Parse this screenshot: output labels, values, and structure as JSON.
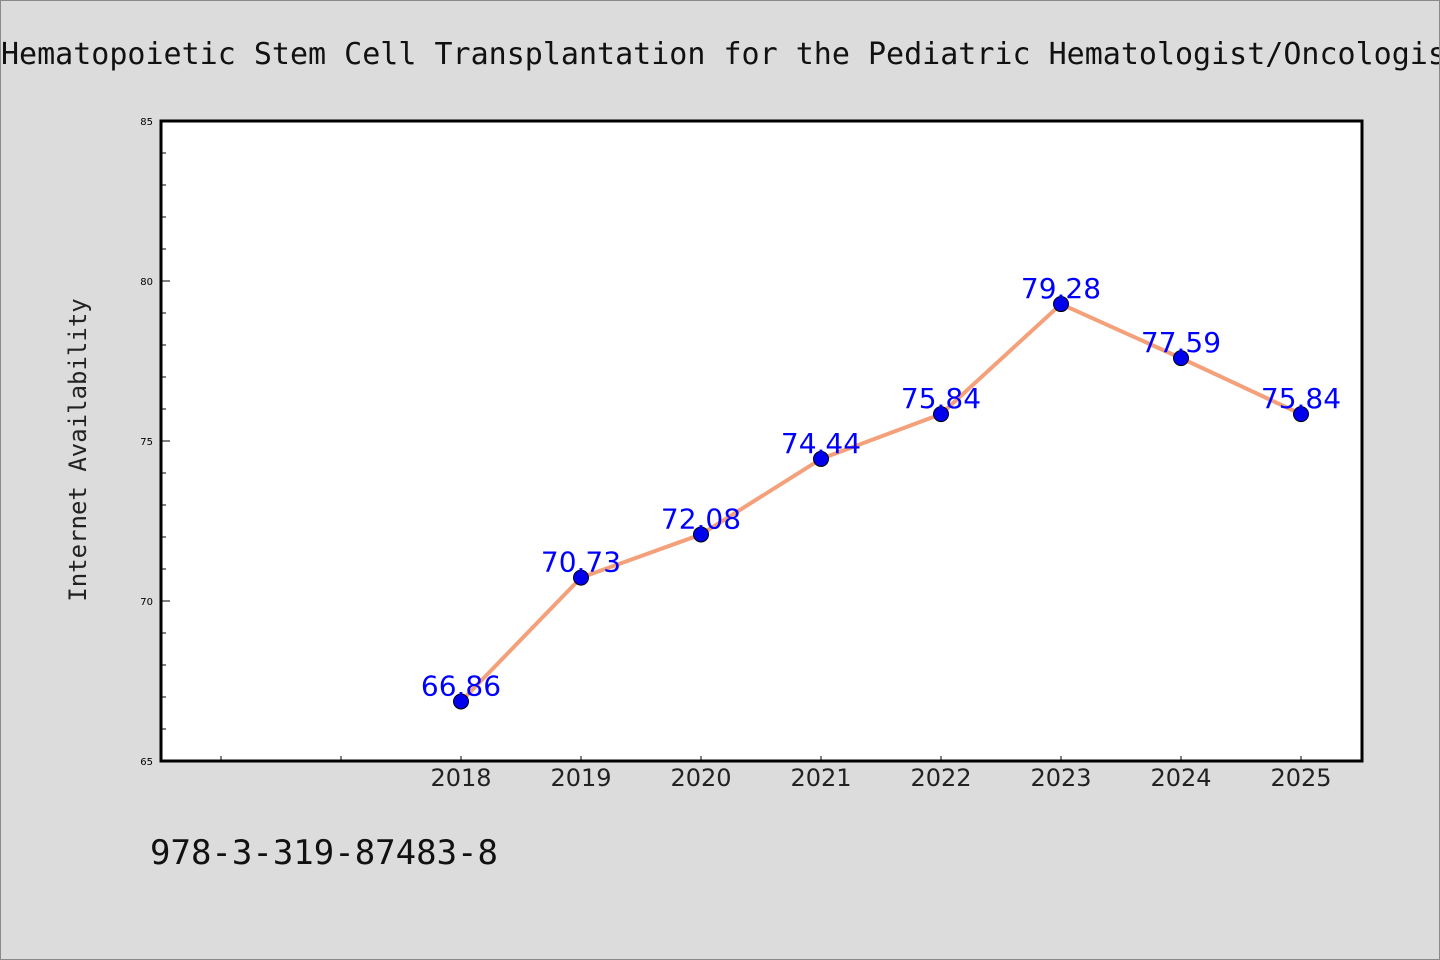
{
  "chart_data": {
    "type": "line",
    "title": "Hematopoietic Stem Cell Transplantation for the Pediatric Hematologist/Oncologist",
    "xlabel": "",
    "ylabel": "Internet Availability",
    "categories": [
      "2018",
      "2019",
      "2020",
      "2021",
      "2022",
      "2023",
      "2024",
      "2025"
    ],
    "series": [
      {
        "values": [
          66.86,
          70.73,
          72.08,
          74.44,
          75.84,
          79.28,
          77.59,
          75.84
        ],
        "labels": [
          "66.86",
          "70.73",
          "72.08",
          "74.44",
          "75.84",
          "79.28",
          "77.59",
          "75.84"
        ]
      }
    ],
    "ylim": [
      65,
      85
    ],
    "yticks": [
      "65",
      "70",
      "75",
      "80",
      "85"
    ],
    "grid": false,
    "legend": "none",
    "line_color": "#f4a07a",
    "marker_color": "#0000ee",
    "label_color": "#0000ff"
  },
  "footer": {
    "isbn": "978-3-319-87483-8"
  }
}
